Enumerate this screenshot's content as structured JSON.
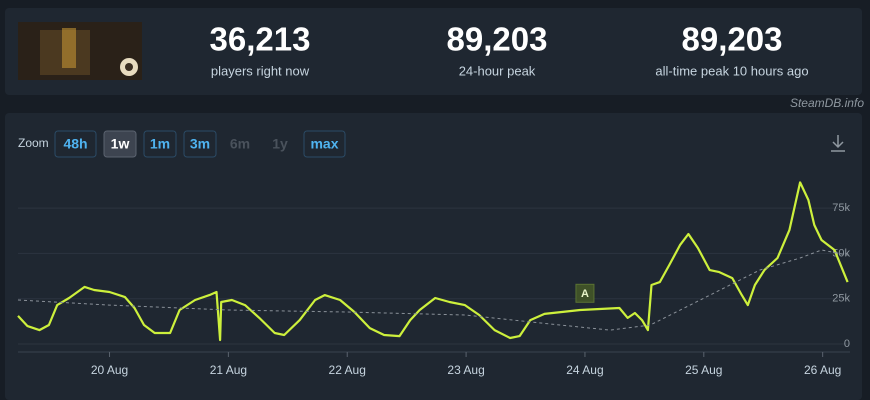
{
  "stats": [
    {
      "value": "36,213",
      "label": "players right now"
    },
    {
      "value": "89,203",
      "label": "24-hour peak"
    },
    {
      "value": "89,203",
      "label": "all-time peak 10 hours ago"
    }
  ],
  "source": "SteamDB.info",
  "zoom": {
    "label": "Zoom",
    "buttons": [
      "48h",
      "1w",
      "1m",
      "3m",
      "6m",
      "1y",
      "max"
    ],
    "active": [
      1
    ],
    "disabled": [
      4,
      5
    ]
  },
  "chart_data": {
    "type": "line",
    "xlim": [
      19.23,
      26.23
    ],
    "xticks": [
      {
        "value": 20,
        "label": "20 Aug"
      },
      {
        "value": 21,
        "label": "21 Aug"
      },
      {
        "value": 22,
        "label": "22 Aug"
      },
      {
        "value": 23,
        "label": "23 Aug"
      },
      {
        "value": 24,
        "label": "24 Aug"
      },
      {
        "value": 25,
        "label": "25 Aug"
      },
      {
        "value": 26,
        "label": "26 Aug"
      }
    ],
    "ylim": [
      -4400,
      98800
    ],
    "yticks": [
      0,
      {
        "value": 25000,
        "label": "25k"
      },
      {
        "value": 50000,
        "label": "50k"
      },
      {
        "value": 75000,
        "label": "75k"
      }
    ],
    "grid": true,
    "series": [
      {
        "color": "#cdf03c",
        "dashed": false,
        "x": [
          19.23,
          19.31,
          19.41,
          19.49,
          19.56,
          19.66,
          19.79,
          19.87,
          20.0,
          20.13,
          20.21,
          20.29,
          20.38,
          20.51,
          20.59,
          20.72,
          20.84,
          20.9,
          20.93,
          20.94,
          21.03,
          21.14,
          21.26,
          21.39,
          21.47,
          21.6,
          21.73,
          21.81,
          21.94,
          22.06,
          22.19,
          22.31,
          22.44,
          22.53,
          22.61,
          22.74,
          22.86,
          22.99,
          23.11,
          23.24,
          23.37,
          23.45,
          23.54,
          23.66,
          23.96,
          24.29,
          24.36,
          24.42,
          24.48,
          24.53,
          24.56,
          24.63,
          24.71,
          24.8,
          24.87,
          24.95,
          25.05,
          25.13,
          25.24,
          25.32,
          25.37,
          25.43,
          25.51,
          25.62,
          25.72,
          25.81,
          25.88,
          25.93,
          25.99,
          26.1,
          26.21
        ],
        "values": [
          15500,
          9900,
          7700,
          10500,
          21500,
          25400,
          31500,
          29800,
          28700,
          25900,
          19900,
          10500,
          6100,
          6100,
          18800,
          24300,
          27000,
          28700,
          2200,
          23200,
          24300,
          21500,
          14400,
          6100,
          5000,
          13200,
          24300,
          27000,
          24300,
          17700,
          8800,
          5000,
          4400,
          13200,
          18800,
          25400,
          23200,
          21500,
          16000,
          7700,
          3300,
          4400,
          13200,
          16600,
          18800,
          19900,
          14400,
          17100,
          13200,
          7700,
          32600,
          34200,
          43600,
          54600,
          60700,
          53000,
          40800,
          39700,
          36400,
          27000,
          21500,
          32600,
          40800,
          47500,
          62900,
          89200,
          79500,
          65700,
          57400,
          51900,
          34200
        ]
      },
      {
        "color": "#8a9199",
        "dashed": true,
        "x": [
          19.23,
          20.0,
          20.99,
          21.99,
          22.99,
          23.79,
          24.21,
          24.55,
          24.97,
          25.47,
          25.81,
          25.99,
          26.21
        ],
        "values": [
          24300,
          21500,
          18800,
          17700,
          16000,
          10500,
          7700,
          10500,
          24300,
          40800,
          47500,
          51900,
          49100
        ]
      }
    ],
    "annotations": [
      {
        "x": 24.0,
        "y": 28000,
        "text": "A"
      }
    ]
  }
}
